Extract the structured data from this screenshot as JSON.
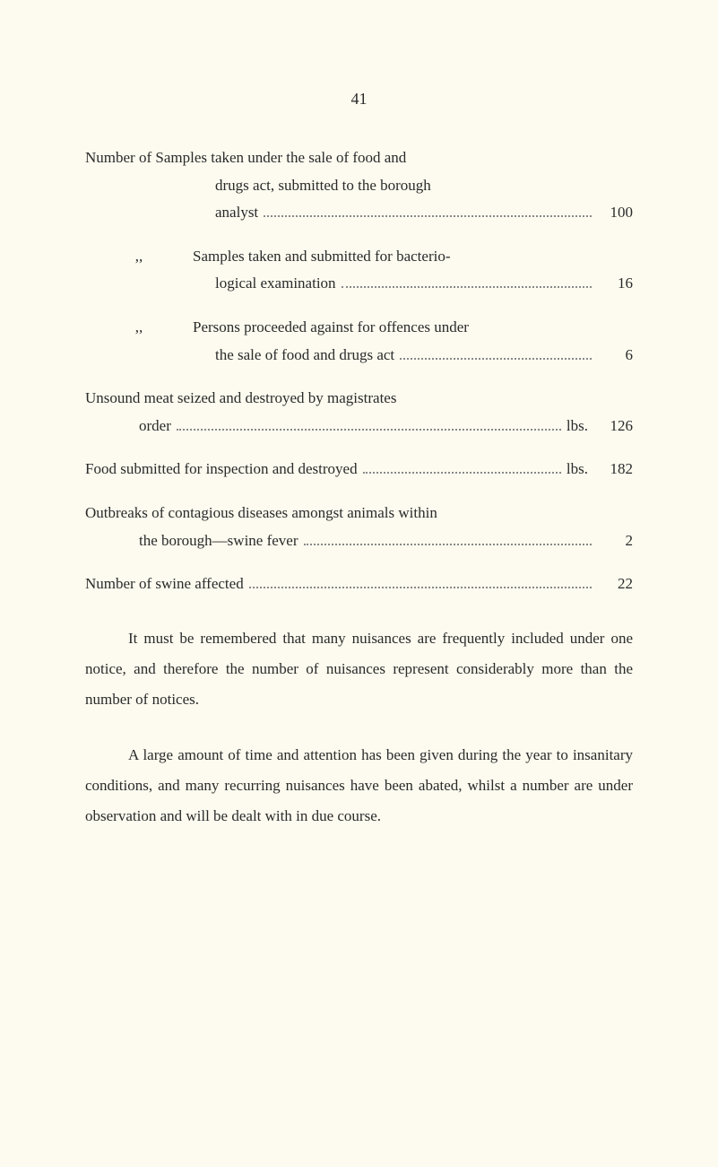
{
  "pageNumber": "41",
  "entries": [
    {
      "lines": [
        {
          "text": "Number of Samples taken under the sale of food and",
          "indent": "indent-1"
        },
        {
          "text": "drugs act, submitted to the borough",
          "indent": "indent-sub"
        },
        {
          "text": "analyst",
          "indent": "indent-sub",
          "dots": true,
          "value": "100"
        }
      ]
    },
    {
      "lines": [
        {
          "text": "Samples taken and submitted for bacterio-",
          "prefix": ",,",
          "indent": "indent-1"
        },
        {
          "text": "logical examination",
          "indent": "indent-sub",
          "dots": true,
          "value": "16"
        }
      ]
    },
    {
      "lines": [
        {
          "text": "Persons proceeded against for offences under",
          "prefix": ",,",
          "indent": "indent-1"
        },
        {
          "text": "the sale of food and drugs act",
          "indent": "indent-sub",
          "dots": true,
          "value": "6"
        }
      ]
    },
    {
      "lines": [
        {
          "text": "Unsound meat seized and destroyed by magistrates",
          "indent": "indent-1"
        },
        {
          "text": "order",
          "indent": "indent-order",
          "dots": true,
          "suffix": "lbs.",
          "value": "126"
        }
      ]
    },
    {
      "lines": [
        {
          "text": "Food submitted for inspection and destroyed",
          "indent": "indent-1",
          "dots": true,
          "suffix": "lbs.",
          "value": "182"
        }
      ]
    },
    {
      "lines": [
        {
          "text": "Outbreaks of contagious diseases amongst animals within",
          "indent": "indent-1"
        },
        {
          "text": "the borough—swine fever",
          "indent": "indent-borough",
          "dots": true,
          "value": "2"
        }
      ]
    },
    {
      "lines": [
        {
          "text": "Number of swine affected",
          "indent": "indent-1",
          "dots": true,
          "value": "22"
        }
      ]
    }
  ],
  "paragraphs": [
    "It must be remembered that many nuisances are frequently included under one notice, and therefore the number of nuisances represent considerably more than the number of notices.",
    "A large amount of time and attention has been given during the year to insanitary conditions, and many recurring nuisances have been abated, whilst a number are under observation and will be dealt with in due course."
  ]
}
